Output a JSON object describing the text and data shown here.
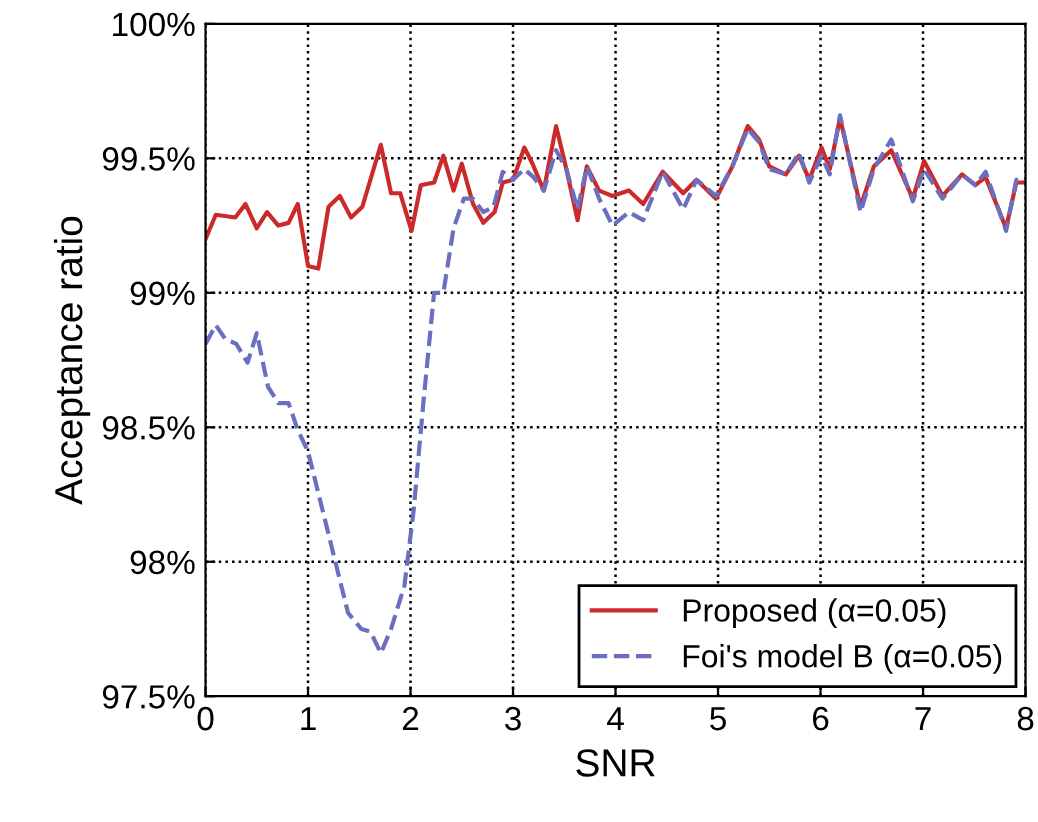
{
  "chart_data": {
    "type": "line",
    "xlabel": "SNR",
    "ylabel": "Acceptance ratio",
    "xlim": [
      0,
      8
    ],
    "xticks": [
      0,
      1,
      2,
      3,
      4,
      5,
      6,
      7,
      8
    ],
    "ylim": [
      97.5,
      100
    ],
    "yticks": [
      {
        "value": 97.5,
        "label": "97.5%"
      },
      {
        "value": 98,
        "label": "98%"
      },
      {
        "value": 98.5,
        "label": "98.5%"
      },
      {
        "value": 99,
        "label": "99%"
      },
      {
        "value": 99.5,
        "label": "99.5%"
      },
      {
        "value": 100,
        "label": "100%"
      }
    ],
    "grid": true,
    "legend": "bottom right",
    "series": [
      {
        "name": "Proposed (α=0.05)",
        "color": "#cc2a2a",
        "line_style": "solid",
        "x": [
          0,
          0.1,
          0.29,
          0.39,
          0.5,
          0.6,
          0.71,
          0.81,
          0.9,
          1.0,
          1.1,
          1.2,
          1.31,
          1.42,
          1.53,
          1.71,
          1.81,
          1.9,
          2.01,
          2.1,
          2.23,
          2.32,
          2.42,
          2.5,
          2.61,
          2.71,
          2.82,
          2.9,
          3.0,
          3.11,
          3.19,
          3.3,
          3.42,
          3.52,
          3.63,
          3.72,
          3.84,
          3.97,
          4.13,
          4.27,
          4.46,
          4.66,
          4.79,
          4.98,
          5.14,
          5.29,
          5.4,
          5.5,
          5.66,
          5.79,
          5.89,
          6.01,
          6.09,
          6.19,
          6.39,
          6.52,
          6.69,
          6.9,
          7.01,
          7.19,
          7.38,
          7.51,
          7.61,
          7.81,
          7.91,
          8.0
        ],
        "values": [
          99.2,
          99.29,
          99.28,
          99.33,
          99.24,
          99.3,
          99.25,
          99.26,
          99.33,
          99.1,
          99.09,
          99.32,
          99.36,
          99.28,
          99.32,
          99.55,
          99.37,
          99.37,
          99.23,
          99.4,
          99.41,
          99.51,
          99.38,
          99.48,
          99.33,
          99.26,
          99.3,
          99.41,
          99.42,
          99.54,
          99.48,
          99.38,
          99.62,
          99.46,
          99.27,
          99.47,
          99.38,
          99.36,
          99.38,
          99.33,
          99.45,
          99.37,
          99.42,
          99.35,
          99.47,
          99.62,
          99.57,
          99.47,
          99.44,
          99.51,
          99.42,
          99.54,
          99.46,
          99.65,
          99.32,
          99.47,
          99.53,
          99.35,
          99.49,
          99.36,
          99.44,
          99.4,
          99.43,
          99.24,
          99.41,
          99.41
        ]
      },
      {
        "name": "Foi's model B (α=0.05)",
        "color": "#6a6fc0",
        "line_style": "dashed",
        "x": [
          0,
          0.1,
          0.19,
          0.3,
          0.41,
          0.5,
          0.61,
          0.71,
          0.81,
          0.9,
          1.0,
          1.13,
          1.26,
          1.39,
          1.52,
          1.61,
          1.71,
          1.81,
          1.94,
          2.03,
          2.13,
          2.23,
          2.32,
          2.42,
          2.52,
          2.61,
          2.71,
          2.81,
          2.9,
          3.0,
          3.11,
          3.2,
          3.3,
          3.42,
          3.52,
          3.63,
          3.72,
          3.84,
          3.97,
          4.13,
          4.27,
          4.46,
          4.66,
          4.79,
          4.98,
          5.14,
          5.29,
          5.4,
          5.5,
          5.66,
          5.79,
          5.89,
          6.01,
          6.09,
          6.19,
          6.39,
          6.52,
          6.69,
          6.9,
          7.01,
          7.19,
          7.38,
          7.51,
          7.61,
          7.81,
          7.91,
          8.0
        ],
        "values": [
          98.81,
          98.88,
          98.83,
          98.81,
          98.74,
          98.85,
          98.65,
          98.59,
          98.59,
          98.49,
          98.41,
          98.21,
          98.01,
          97.81,
          97.75,
          97.74,
          97.66,
          97.75,
          97.91,
          98.19,
          98.61,
          99.0,
          99.0,
          99.24,
          99.35,
          99.35,
          99.3,
          99.32,
          99.45,
          99.42,
          99.46,
          99.43,
          99.38,
          99.53,
          99.46,
          99.31,
          99.47,
          99.35,
          99.25,
          99.3,
          99.27,
          99.45,
          99.31,
          99.42,
          99.36,
          99.47,
          99.61,
          99.56,
          99.46,
          99.44,
          99.52,
          99.41,
          99.51,
          99.44,
          99.66,
          99.3,
          99.46,
          99.57,
          99.34,
          99.46,
          99.35,
          99.44,
          99.4,
          99.45,
          99.23,
          99.42,
          99.42
        ]
      }
    ]
  }
}
